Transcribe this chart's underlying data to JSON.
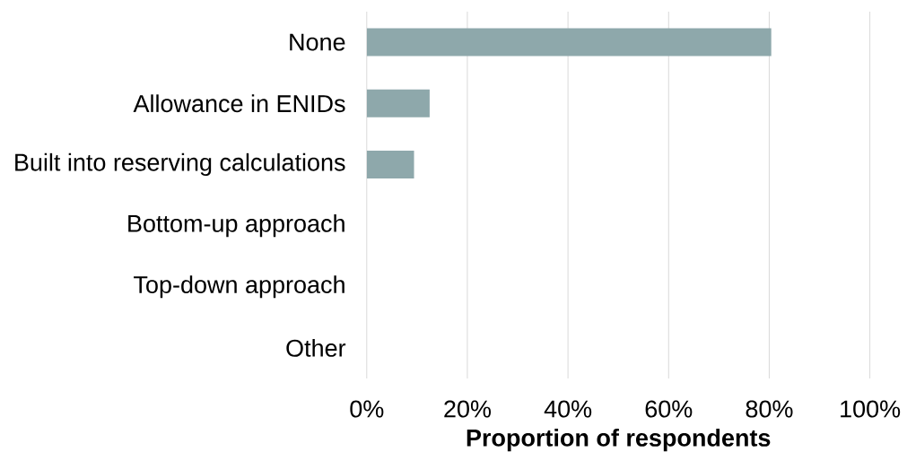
{
  "chart_data": {
    "type": "bar",
    "orientation": "horizontal",
    "xlabel": "Proportion of respondents",
    "categories": [
      "None",
      "Allowance in ENIDs",
      "Built into reserving calculations",
      "Bottom-up approach",
      "Top-down approach",
      "Other"
    ],
    "values": [
      80.4,
      12.5,
      9.4,
      0,
      0,
      0
    ],
    "color": "#8ea8ab",
    "xlim": [
      0,
      100
    ],
    "xticks": [
      {
        "value": 0,
        "label": "0%"
      },
      {
        "value": 20,
        "label": "20%"
      },
      {
        "value": 40,
        "label": "40%"
      },
      {
        "value": 60,
        "label": "60%"
      },
      {
        "value": 80,
        "label": "80%"
      },
      {
        "value": 100,
        "label": "100%"
      }
    ],
    "grid": "x"
  }
}
